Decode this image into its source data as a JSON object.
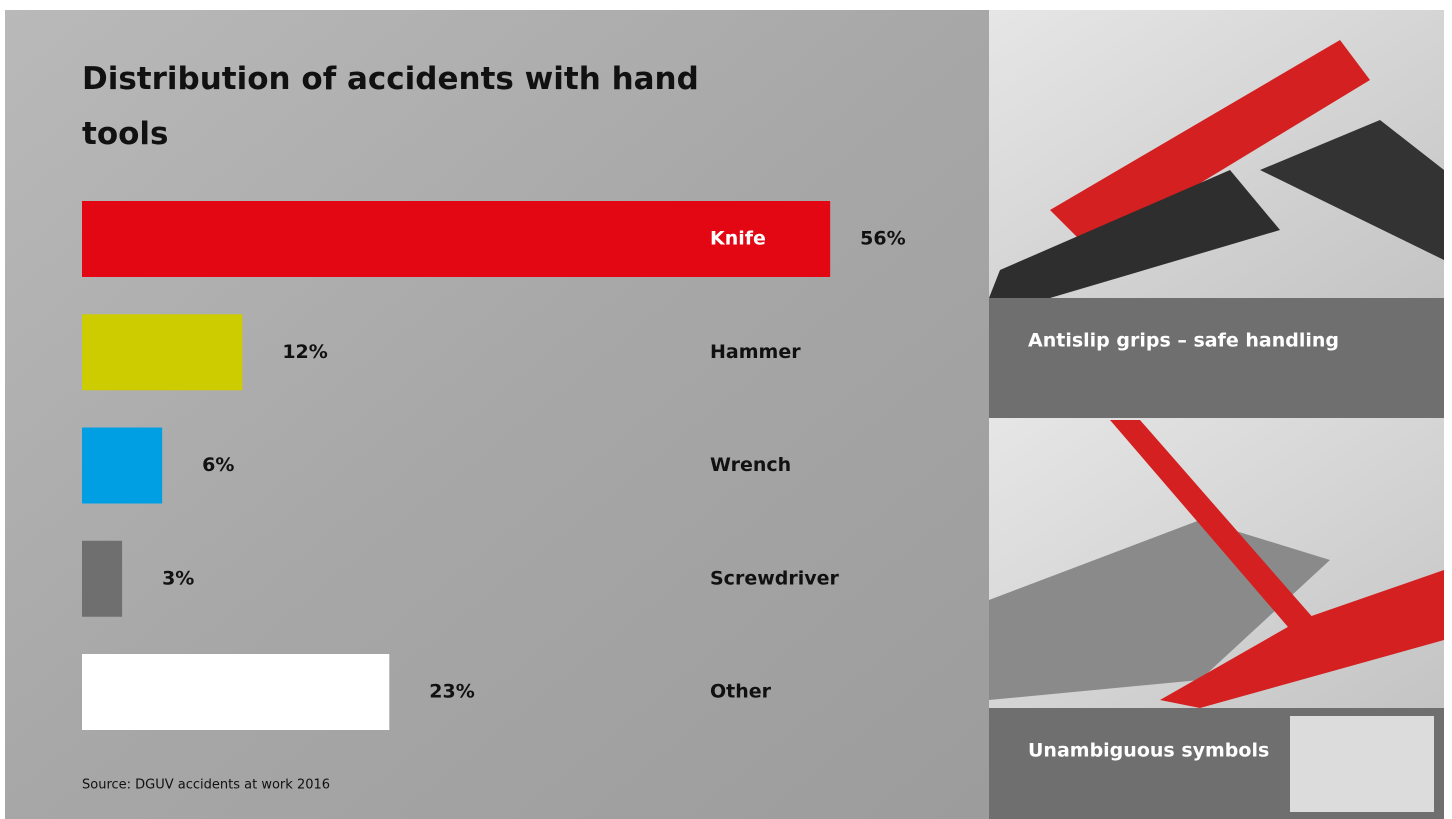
{
  "chart_data": {
    "type": "bar",
    "orientation": "horizontal",
    "title": "Distribution of accidents with hand tools",
    "categories": [
      "Knife",
      "Hammer",
      "Wrench",
      "Screwdriver",
      "Other"
    ],
    "values": [
      56,
      12,
      6,
      3,
      23
    ],
    "value_labels": [
      "56%",
      "12%",
      "6%",
      "3%",
      "23%"
    ],
    "colors": [
      "#e30613",
      "#cccc00",
      "#009fe3",
      "#6f6f6f",
      "#ffffff"
    ],
    "source": "Source: DGUV accidents at work 2016"
  },
  "panels": [
    {
      "caption": "Antislip grips – safe handling"
    },
    {
      "caption": "Unambiguous symbols"
    }
  ]
}
